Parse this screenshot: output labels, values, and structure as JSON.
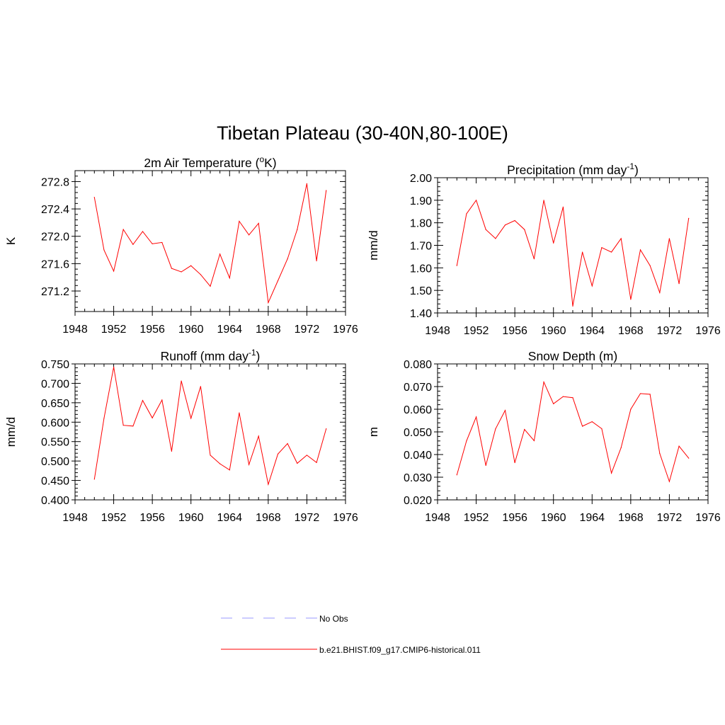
{
  "figure": {
    "title": "Tibetan Plateau (30-40N,80-100E)"
  },
  "legend": {
    "placement": "bottom-center",
    "entries": [
      {
        "label": "No Obs",
        "color": "#9999ff",
        "style": "dashed"
      },
      {
        "label": "b.e21.BHIST.f09_g17.CMIP6-historical.011",
        "color": "#ff0000",
        "style": "solid"
      }
    ]
  },
  "colors": {
    "series": "#ff0000",
    "axis": "#000000"
  },
  "chart_data": [
    {
      "type": "line",
      "title": "2m Air Temperature (",
      "title_sup": "o",
      "title_after": "K)",
      "ylabel": "K",
      "xlim": [
        1948,
        1976
      ],
      "ylim": [
        270.9,
        272.96
      ],
      "xticks": [
        1948,
        1952,
        1956,
        1960,
        1964,
        1968,
        1972,
        1976
      ],
      "xtick_labels": [
        "1948",
        "1952",
        "1956",
        "1960",
        "1964",
        "1968",
        "1972",
        "1976"
      ],
      "yticks": [
        271.2,
        271.6,
        272.0,
        272.4,
        272.8
      ],
      "ytick_labels": [
        "271.2",
        "271.6",
        "272.0",
        "272.4",
        "272.8"
      ],
      "series": [
        {
          "color": "#ff0000",
          "x": [
            1950,
            1951,
            1952,
            1953,
            1954,
            1955,
            1956,
            1957,
            1958,
            1959,
            1960,
            1961,
            1962,
            1963,
            1964,
            1965,
            1966,
            1967,
            1968,
            1969,
            1970,
            1971,
            1972,
            1973,
            1974
          ],
          "y": [
            272.57,
            271.8,
            271.49,
            272.1,
            271.88,
            272.07,
            271.89,
            271.91,
            271.53,
            271.48,
            271.57,
            271.44,
            271.27,
            271.74,
            271.39,
            272.22,
            272.02,
            272.19,
            271.03,
            271.35,
            271.67,
            272.1,
            272.77,
            271.64,
            272.67
          ]
        }
      ]
    },
    {
      "type": "line",
      "title": "Precipitation (mm day",
      "title_sup": "-1",
      "title_after": ")",
      "ylabel": "mm/d",
      "xlim": [
        1948,
        1976
      ],
      "ylim": [
        1.4,
        2.0
      ],
      "xticks": [
        1948,
        1952,
        1956,
        1960,
        1964,
        1968,
        1972,
        1976
      ],
      "xtick_labels": [
        "1948",
        "1952",
        "1956",
        "1960",
        "1964",
        "1968",
        "1972",
        "1976"
      ],
      "yticks": [
        1.4,
        1.5,
        1.6,
        1.7,
        1.8,
        1.9,
        2.0
      ],
      "ytick_labels": [
        "1.40",
        "1.50",
        "1.60",
        "1.70",
        "1.80",
        "1.90",
        "2.00"
      ],
      "series": [
        {
          "color": "#ff0000",
          "x": [
            1950,
            1951,
            1952,
            1953,
            1954,
            1955,
            1956,
            1957,
            1958,
            1959,
            1960,
            1961,
            1962,
            1963,
            1964,
            1965,
            1966,
            1967,
            1968,
            1969,
            1970,
            1971,
            1972,
            1973,
            1974
          ],
          "y": [
            1.61,
            1.84,
            1.9,
            1.77,
            1.73,
            1.79,
            1.81,
            1.77,
            1.64,
            1.9,
            1.71,
            1.87,
            1.43,
            1.67,
            1.52,
            1.69,
            1.67,
            1.73,
            1.46,
            1.68,
            1.61,
            1.49,
            1.73,
            1.53,
            1.82
          ]
        }
      ]
    },
    {
      "type": "line",
      "title": "Runoff (mm day",
      "title_sup": "-1",
      "title_after": ")",
      "ylabel": "mm/d",
      "xlim": [
        1948,
        1976
      ],
      "ylim": [
        0.4,
        0.75
      ],
      "xticks": [
        1948,
        1952,
        1956,
        1960,
        1964,
        1968,
        1972,
        1976
      ],
      "xtick_labels": [
        "1948",
        "1952",
        "1956",
        "1960",
        "1964",
        "1968",
        "1972",
        "1976"
      ],
      "yticks": [
        0.4,
        0.45,
        0.5,
        0.55,
        0.6,
        0.65,
        0.7,
        0.75
      ],
      "ytick_labels": [
        "0.400",
        "0.450",
        "0.500",
        "0.550",
        "0.600",
        "0.650",
        "0.700",
        "0.750"
      ],
      "series": [
        {
          "color": "#ff0000",
          "x": [
            1950,
            1951,
            1952,
            1953,
            1954,
            1955,
            1956,
            1957,
            1958,
            1959,
            1960,
            1961,
            1962,
            1963,
            1964,
            1965,
            1966,
            1967,
            1968,
            1969,
            1970,
            1971,
            1972,
            1973,
            1974
          ],
          "y": [
            0.453,
            0.61,
            0.742,
            0.592,
            0.59,
            0.656,
            0.611,
            0.657,
            0.525,
            0.706,
            0.61,
            0.692,
            0.515,
            0.493,
            0.477,
            0.624,
            0.491,
            0.564,
            0.44,
            0.518,
            0.545,
            0.494,
            0.515,
            0.496,
            0.583
          ]
        }
      ]
    },
    {
      "type": "line",
      "title": "Snow Depth (m)",
      "title_sup": "",
      "title_after": "",
      "ylabel": "m",
      "xlim": [
        1948,
        1976
      ],
      "ylim": [
        0.02,
        0.08
      ],
      "xticks": [
        1948,
        1952,
        1956,
        1960,
        1964,
        1968,
        1972,
        1976
      ],
      "xtick_labels": [
        "1948",
        "1952",
        "1956",
        "1960",
        "1964",
        "1968",
        "1972",
        "1976"
      ],
      "yticks": [
        0.02,
        0.03,
        0.04,
        0.05,
        0.06,
        0.07,
        0.08
      ],
      "ytick_labels": [
        "0.020",
        "0.030",
        "0.040",
        "0.050",
        "0.060",
        "0.070",
        "0.080"
      ],
      "series": [
        {
          "color": "#ff0000",
          "x": [
            1950,
            1951,
            1952,
            1953,
            1954,
            1955,
            1956,
            1957,
            1958,
            1959,
            1960,
            1961,
            1962,
            1963,
            1964,
            1965,
            1966,
            1967,
            1968,
            1969,
            1970,
            1971,
            1972,
            1973,
            1974
          ],
          "y": [
            0.031,
            0.046,
            0.0566,
            0.0352,
            0.0513,
            0.0595,
            0.0364,
            0.0511,
            0.0461,
            0.072,
            0.0624,
            0.0656,
            0.0651,
            0.0525,
            0.0545,
            0.0514,
            0.0318,
            0.043,
            0.06,
            0.0669,
            0.0666,
            0.0405,
            0.0281,
            0.0437,
            0.0384
          ]
        }
      ]
    }
  ]
}
